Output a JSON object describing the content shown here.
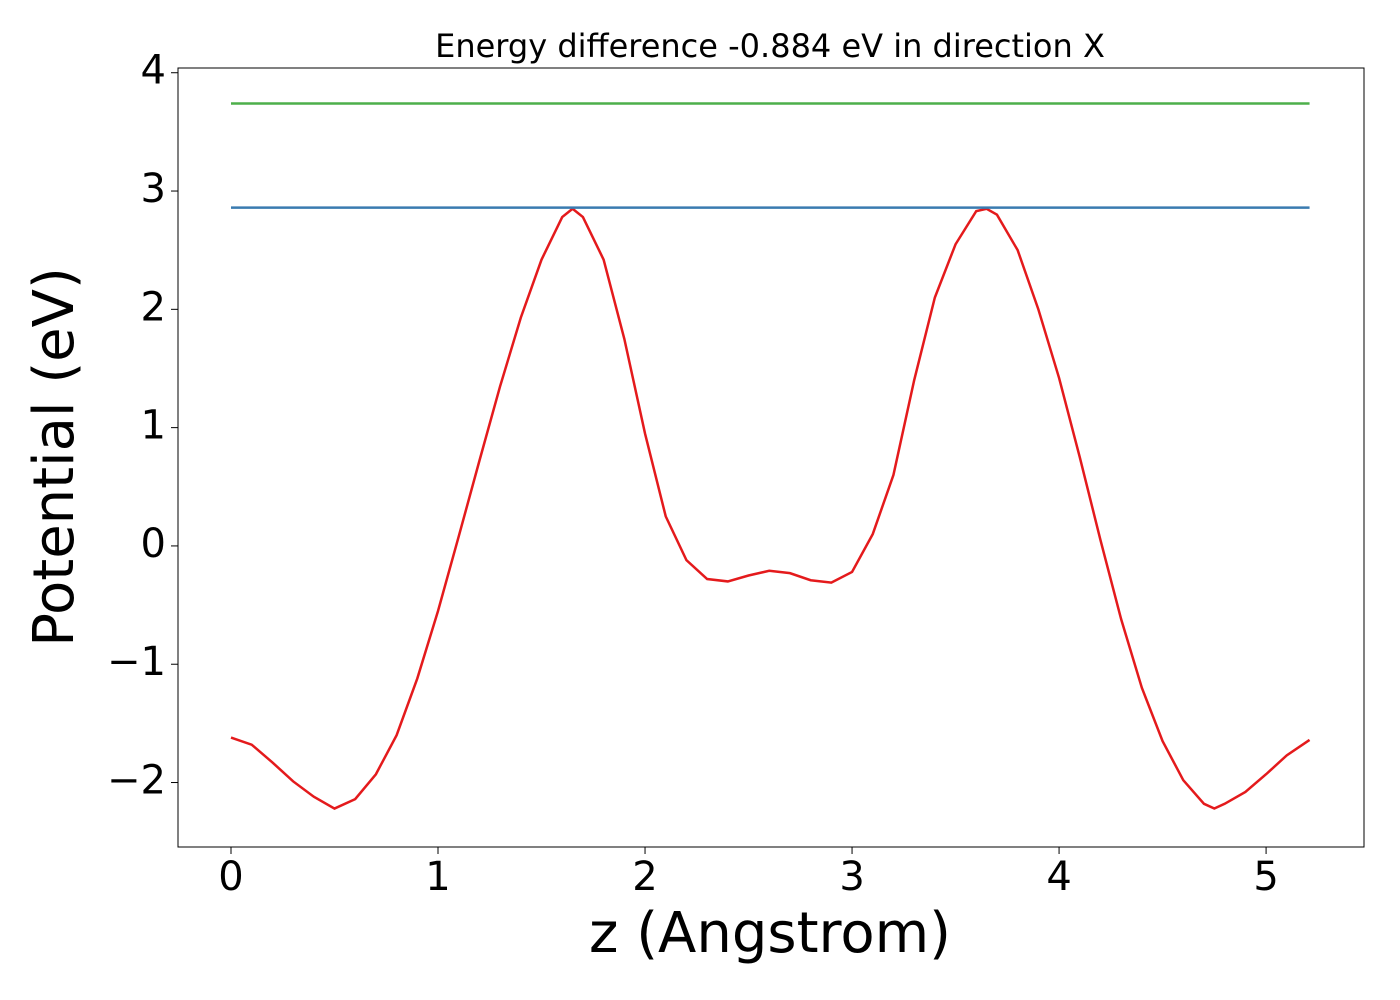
{
  "chart_data": {
    "type": "line",
    "title": "Energy difference -0.884 eV in direction X",
    "xlabel": "z (Angstrom)",
    "ylabel": "Potential (eV)",
    "xlim": [
      -0.256,
      5.473
    ],
    "ylim": [
      -2.545,
      4.04
    ],
    "xticks": [
      0,
      1,
      2,
      3,
      4,
      5
    ],
    "yticks": [
      {
        "value": -2,
        "label": "−2"
      },
      {
        "value": -1,
        "label": "−1"
      },
      0,
      1,
      2,
      3,
      4
    ],
    "grid": false,
    "series": [
      {
        "color": "#e41a1c",
        "x": [
          0,
          0.1,
          0.2,
          0.3,
          0.4,
          0.5,
          0.6,
          0.7,
          0.8,
          0.9,
          1.0,
          1.1,
          1.2,
          1.3,
          1.4,
          1.5,
          1.6,
          1.65,
          1.7,
          1.8,
          1.9,
          2.0,
          2.1,
          2.2,
          2.3,
          2.4,
          2.5,
          2.6,
          2.7,
          2.8,
          2.9,
          3.0,
          3.1,
          3.2,
          3.3,
          3.4,
          3.5,
          3.6,
          3.65,
          3.7,
          3.8,
          3.9,
          4.0,
          4.1,
          4.2,
          4.3,
          4.4,
          4.5,
          4.6,
          4.7,
          4.75,
          4.8,
          4.9,
          5.0,
          5.1,
          5.21
        ],
        "values": [
          -1.62,
          -1.68,
          -1.83,
          -1.99,
          -2.12,
          -2.22,
          -2.14,
          -1.93,
          -1.6,
          -1.12,
          -0.55,
          0.08,
          0.72,
          1.35,
          1.93,
          2.42,
          2.78,
          2.85,
          2.78,
          2.42,
          1.75,
          0.95,
          0.25,
          -0.12,
          -0.28,
          -0.3,
          -0.25,
          -0.21,
          -0.23,
          -0.29,
          -0.31,
          -0.22,
          0.1,
          0.6,
          1.4,
          2.1,
          2.55,
          2.83,
          2.85,
          2.8,
          2.5,
          2.0,
          1.42,
          0.75,
          0.05,
          -0.62,
          -1.2,
          -1.65,
          -1.98,
          -2.18,
          -2.22,
          -2.18,
          -2.08,
          -1.93,
          -1.77,
          -1.64
        ]
      },
      {
        "color": "#3a7bb0",
        "x": [
          0,
          5.21
        ],
        "values": [
          2.86,
          2.86
        ]
      },
      {
        "color": "#4daf4a",
        "x": [
          0,
          5.21
        ],
        "values": [
          3.74,
          3.74
        ]
      }
    ]
  }
}
